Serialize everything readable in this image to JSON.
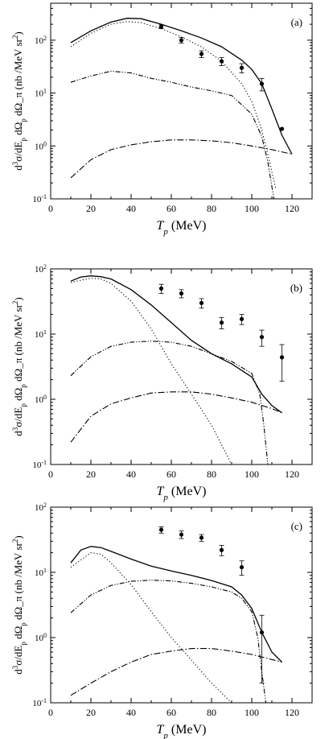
{
  "chart_data": [
    {
      "type": "line",
      "panel_label": "(a)",
      "xlabel": "T_p (MeV)",
      "ylabel": "d^3σ/dE_p dΩ_p dΩ_π (nb /MeV sr^2)",
      "xlim": [
        0,
        130
      ],
      "ylim": [
        0.1,
        500
      ],
      "yscale": "log",
      "x_ticks": [
        "0",
        "20",
        "40",
        "60",
        "80",
        "100",
        "120"
      ],
      "y_ticks": [
        "10^-1",
        "10^0",
        "10^1",
        "10^2"
      ],
      "series": [
        {
          "style": "solid",
          "points": [
            [
              10,
              90
            ],
            [
              20,
              150
            ],
            [
              30,
              220
            ],
            [
              38,
              260
            ],
            [
              45,
              255
            ],
            [
              55,
              200
            ],
            [
              65,
              150
            ],
            [
              75,
              110
            ],
            [
              85,
              75
            ],
            [
              95,
              42
            ],
            [
              100,
              28
            ],
            [
              105,
              15
            ],
            [
              110,
              5
            ],
            [
              115,
              1.6
            ],
            [
              120,
              0.7
            ]
          ]
        },
        {
          "style": "dotted",
          "points": [
            [
              10,
              75
            ],
            [
              20,
              135
            ],
            [
              30,
              200
            ],
            [
              38,
              225
            ],
            [
              45,
              215
            ],
            [
              55,
              165
            ],
            [
              65,
              115
            ],
            [
              75,
              75
            ],
            [
              85,
              40
            ],
            [
              95,
              15
            ],
            [
              100,
              7
            ],
            [
              105,
              2
            ],
            [
              108,
              0.7
            ],
            [
              112,
              0.15
            ]
          ]
        },
        {
          "style": "dash-dot-dot",
          "points": [
            [
              10,
              16
            ],
            [
              20,
              21
            ],
            [
              30,
              26
            ],
            [
              40,
              24
            ],
            [
              50,
              19
            ],
            [
              60,
              16
            ],
            [
              70,
              13
            ],
            [
              80,
              11
            ],
            [
              90,
              9
            ],
            [
              100,
              4
            ],
            [
              105,
              1.5
            ],
            [
              108,
              0.5
            ],
            [
              111,
              0.1
            ]
          ]
        },
        {
          "style": "dash-dot",
          "points": [
            [
              10,
              0.25
            ],
            [
              20,
              0.55
            ],
            [
              30,
              0.85
            ],
            [
              40,
              1.05
            ],
            [
              50,
              1.2
            ],
            [
              60,
              1.3
            ],
            [
              70,
              1.3
            ],
            [
              80,
              1.25
            ],
            [
              90,
              1.15
            ],
            [
              100,
              1.0
            ],
            [
              110,
              0.85
            ],
            [
              120,
              0.7
            ]
          ]
        }
      ],
      "points": [
        {
          "x": 55,
          "y": 180,
          "err": 15
        },
        {
          "x": 65,
          "y": 100,
          "err": 12
        },
        {
          "x": 75,
          "y": 55,
          "err": 8
        },
        {
          "x": 85,
          "y": 40,
          "err": 7
        },
        {
          "x": 95,
          "y": 30,
          "err": 6
        },
        {
          "x": 105,
          "y": 15,
          "err": 4
        },
        {
          "x": 115,
          "y": 2.1,
          "err": 0
        }
      ]
    },
    {
      "type": "line",
      "panel_label": "(b)",
      "xlabel": "T_p (MeV)",
      "ylabel": "d^3σ/dE_p dΩ_p dΩ_π (nb /MeV sr^2)",
      "xlim": [
        0,
        130
      ],
      "ylim": [
        0.1,
        100
      ],
      "yscale": "log",
      "x_ticks": [
        "0",
        "20",
        "40",
        "60",
        "80",
        "100",
        "120"
      ],
      "y_ticks": [
        "10^-1",
        "10^0",
        "10^1",
        "10^2"
      ],
      "series": [
        {
          "style": "solid",
          "points": [
            [
              10,
              65
            ],
            [
              15,
              75
            ],
            [
              20,
              78
            ],
            [
              25,
              76
            ],
            [
              30,
              70
            ],
            [
              40,
              48
            ],
            [
              50,
              28
            ],
            [
              60,
              15
            ],
            [
              70,
              8
            ],
            [
              80,
              5
            ],
            [
              90,
              3.5
            ],
            [
              100,
              2.2
            ],
            [
              105,
              1.2
            ],
            [
              110,
              0.8
            ],
            [
              115,
              0.62
            ]
          ]
        },
        {
          "style": "dotted",
          "points": [
            [
              10,
              62
            ],
            [
              20,
              72
            ],
            [
              25,
              70
            ],
            [
              30,
              60
            ],
            [
              40,
              32
            ],
            [
              50,
              12
            ],
            [
              60,
              3.5
            ],
            [
              70,
              1.2
            ],
            [
              80,
              0.4
            ],
            [
              90,
              0.1
            ]
          ]
        },
        {
          "style": "dash-dot-dot",
          "points": [
            [
              10,
              2.3
            ],
            [
              20,
              4.5
            ],
            [
              30,
              6.5
            ],
            [
              40,
              7.5
            ],
            [
              50,
              7.8
            ],
            [
              60,
              7.5
            ],
            [
              70,
              6.5
            ],
            [
              80,
              5
            ],
            [
              90,
              3.8
            ],
            [
              100,
              2.5
            ],
            [
              104,
              1.2
            ],
            [
              106,
              0.4
            ],
            [
              108,
              0.1
            ]
          ]
        },
        {
          "style": "dash-dot",
          "points": [
            [
              10,
              0.22
            ],
            [
              20,
              0.55
            ],
            [
              30,
              0.85
            ],
            [
              40,
              1.05
            ],
            [
              50,
              1.25
            ],
            [
              60,
              1.3
            ],
            [
              70,
              1.3
            ],
            [
              80,
              1.2
            ],
            [
              90,
              1.05
            ],
            [
              100,
              0.9
            ],
            [
              110,
              0.72
            ],
            [
              115,
              0.62
            ]
          ]
        }
      ],
      "points": [
        {
          "x": 55,
          "y": 50,
          "err": 8
        },
        {
          "x": 65,
          "y": 42,
          "err": 6
        },
        {
          "x": 75,
          "y": 30,
          "err": 5
        },
        {
          "x": 85,
          "y": 15,
          "err": 3
        },
        {
          "x": 95,
          "y": 17,
          "err": 3
        },
        {
          "x": 105,
          "y": 9,
          "err": 2.5
        },
        {
          "x": 115,
          "y": 4.4,
          "err": 2.5
        }
      ]
    },
    {
      "type": "line",
      "panel_label": "(c)",
      "xlabel": "T_p (MeV)",
      "ylabel": "d^3σ/dE_p dΩ_p dΩ_π (nb /MeV sr^2)",
      "xlim": [
        0,
        130
      ],
      "ylim": [
        0.1,
        100
      ],
      "yscale": "log",
      "x_ticks": [
        "0",
        "20",
        "40",
        "60",
        "80",
        "100",
        "120"
      ],
      "y_ticks": [
        "10^-1",
        "10^0",
        "10^1",
        "10^2"
      ],
      "series": [
        {
          "style": "solid",
          "points": [
            [
              10,
              14
            ],
            [
              15,
              22
            ],
            [
              20,
              25
            ],
            [
              25,
              24
            ],
            [
              30,
              21
            ],
            [
              40,
              16
            ],
            [
              50,
              12.5
            ],
            [
              60,
              10.5
            ],
            [
              70,
              9
            ],
            [
              80,
              7.5
            ],
            [
              90,
              6
            ],
            [
              95,
              4.5
            ],
            [
              100,
              2.8
            ],
            [
              105,
              1.2
            ],
            [
              110,
              0.6
            ],
            [
              115,
              0.42
            ]
          ]
        },
        {
          "style": "dotted",
          "points": [
            [
              10,
              12
            ],
            [
              20,
              20
            ],
            [
              25,
              19
            ],
            [
              30,
              14
            ],
            [
              40,
              6.5
            ],
            [
              50,
              2.5
            ],
            [
              60,
              1
            ],
            [
              70,
              0.45
            ],
            [
              80,
              0.2
            ],
            [
              90,
              0.1
            ]
          ]
        },
        {
          "style": "dash-dot-dot",
          "points": [
            [
              10,
              2.4
            ],
            [
              20,
              4.5
            ],
            [
              30,
              6.3
            ],
            [
              40,
              7.3
            ],
            [
              50,
              7.6
            ],
            [
              60,
              7.4
            ],
            [
              70,
              6.8
            ],
            [
              80,
              6
            ],
            [
              90,
              5
            ],
            [
              95,
              4
            ],
            [
              100,
              2.5
            ],
            [
              103,
              1
            ],
            [
              105,
              0.3
            ],
            [
              107,
              0.1
            ]
          ]
        },
        {
          "style": "dash-dot",
          "points": [
            [
              10,
              0.13
            ],
            [
              20,
              0.2
            ],
            [
              30,
              0.3
            ],
            [
              40,
              0.42
            ],
            [
              50,
              0.55
            ],
            [
              60,
              0.62
            ],
            [
              70,
              0.68
            ],
            [
              80,
              0.68
            ],
            [
              90,
              0.62
            ],
            [
              100,
              0.55
            ],
            [
              110,
              0.46
            ],
            [
              115,
              0.42
            ]
          ]
        }
      ],
      "points": [
        {
          "x": 55,
          "y": 45,
          "err": 5
        },
        {
          "x": 65,
          "y": 38,
          "err": 5
        },
        {
          "x": 75,
          "y": 34,
          "err": 4
        },
        {
          "x": 85,
          "y": 22,
          "err": 4
        },
        {
          "x": 95,
          "y": 12,
          "err": 3
        },
        {
          "x": 105,
          "y": 1.2,
          "err": 1.0
        }
      ]
    }
  ]
}
